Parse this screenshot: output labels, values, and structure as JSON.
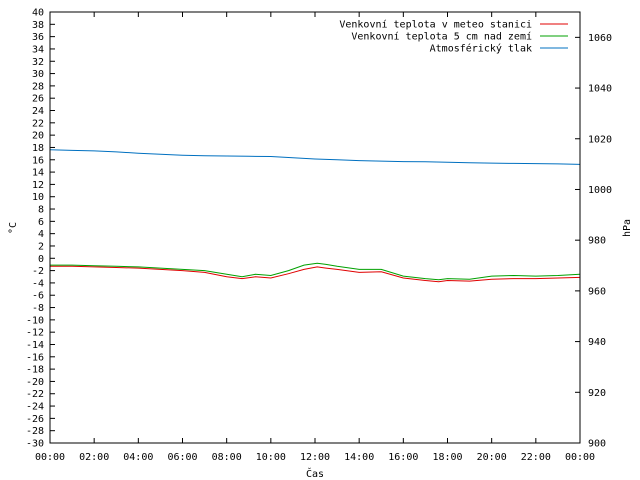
{
  "chart_data": {
    "type": "line",
    "xlabel": "Čas",
    "ylabel": "°C",
    "y2label": "hPa",
    "x_ticks": [
      "00:00",
      "02:00",
      "04:00",
      "06:00",
      "08:00",
      "10:00",
      "12:00",
      "14:00",
      "16:00",
      "18:00",
      "20:00",
      "22:00",
      "00:00"
    ],
    "x_hours": [
      0,
      2,
      4,
      6,
      8,
      10,
      12,
      14,
      16,
      18,
      20,
      22,
      24
    ],
    "ylim": [
      -30,
      40
    ],
    "y_tick_step": 2,
    "y2lim": [
      900,
      1070
    ],
    "y2_ticks": [
      900,
      920,
      940,
      960,
      980,
      1000,
      1020,
      1040,
      1060
    ],
    "grid": false,
    "legend_position": "top-right",
    "series": [
      {
        "name": "Venkovní teplota v meteo stanici",
        "axis": "left",
        "color": "#e00000",
        "points": [
          [
            0,
            -1.3
          ],
          [
            1,
            -1.3
          ],
          [
            2,
            -1.4
          ],
          [
            3,
            -1.5
          ],
          [
            4,
            -1.6
          ],
          [
            5,
            -1.8
          ],
          [
            6,
            -2.0
          ],
          [
            7,
            -2.3
          ],
          [
            8,
            -3.0
          ],
          [
            8.7,
            -3.3
          ],
          [
            9.3,
            -3.0
          ],
          [
            10,
            -3.2
          ],
          [
            10.8,
            -2.5
          ],
          [
            11.5,
            -1.8
          ],
          [
            12.1,
            -1.4
          ],
          [
            12.5,
            -1.6
          ],
          [
            13,
            -1.8
          ],
          [
            14,
            -2.3
          ],
          [
            15,
            -2.2
          ],
          [
            16,
            -3.2
          ],
          [
            17,
            -3.6
          ],
          [
            17.6,
            -3.8
          ],
          [
            18,
            -3.6
          ],
          [
            19,
            -3.7
          ],
          [
            20,
            -3.4
          ],
          [
            21,
            -3.3
          ],
          [
            22,
            -3.3
          ],
          [
            23,
            -3.2
          ],
          [
            24,
            -3.1
          ]
        ]
      },
      {
        "name": "Venkovní teplota 5 cm nad zemí",
        "axis": "left",
        "color": "#00a000",
        "points": [
          [
            0,
            -1.1
          ],
          [
            1,
            -1.1
          ],
          [
            2,
            -1.2
          ],
          [
            3,
            -1.3
          ],
          [
            4,
            -1.4
          ],
          [
            5,
            -1.6
          ],
          [
            6,
            -1.8
          ],
          [
            7,
            -2.0
          ],
          [
            8,
            -2.6
          ],
          [
            8.7,
            -3.0
          ],
          [
            9.3,
            -2.6
          ],
          [
            10,
            -2.8
          ],
          [
            10.8,
            -2.0
          ],
          [
            11.5,
            -1.1
          ],
          [
            12.1,
            -0.8
          ],
          [
            12.5,
            -1.0
          ],
          [
            13,
            -1.3
          ],
          [
            14,
            -1.8
          ],
          [
            15,
            -1.8
          ],
          [
            16,
            -2.9
          ],
          [
            17,
            -3.3
          ],
          [
            17.6,
            -3.5
          ],
          [
            18,
            -3.3
          ],
          [
            19,
            -3.4
          ],
          [
            20,
            -2.9
          ],
          [
            21,
            -2.8
          ],
          [
            22,
            -2.9
          ],
          [
            23,
            -2.8
          ],
          [
            24,
            -2.6
          ]
        ]
      },
      {
        "name": "Atmosférický tlak",
        "axis": "right",
        "color": "#0070c0",
        "points": [
          [
            0,
            1015.7
          ],
          [
            1,
            1015.4
          ],
          [
            2,
            1015.2
          ],
          [
            3,
            1014.8
          ],
          [
            4,
            1014.3
          ],
          [
            5,
            1013.9
          ],
          [
            6,
            1013.5
          ],
          [
            7,
            1013.3
          ],
          [
            8,
            1013.2
          ],
          [
            9,
            1013.1
          ],
          [
            10,
            1013.0
          ],
          [
            11,
            1012.5
          ],
          [
            12,
            1012.0
          ],
          [
            13,
            1011.7
          ],
          [
            14,
            1011.4
          ],
          [
            15,
            1011.2
          ],
          [
            16,
            1011.0
          ],
          [
            17,
            1010.9
          ],
          [
            18,
            1010.7
          ],
          [
            19,
            1010.5
          ],
          [
            20,
            1010.4
          ],
          [
            21,
            1010.3
          ],
          [
            22,
            1010.2
          ],
          [
            23,
            1010.1
          ],
          [
            24,
            1009.9
          ]
        ]
      }
    ]
  }
}
